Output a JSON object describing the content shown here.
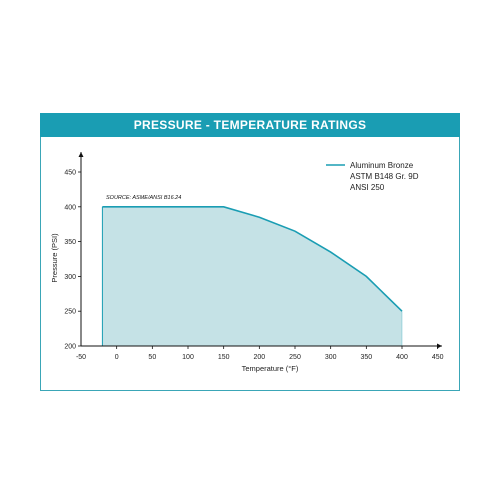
{
  "chart_data": {
    "type": "area",
    "title": "PRESSURE - TEMPERATURE RATINGS",
    "xlabel": "Temperature (°F)",
    "ylabel": "Pressure (PSI)",
    "xlim": [
      -50,
      450
    ],
    "ylim": [
      200,
      450
    ],
    "x_ticks": [
      "-50",
      "0",
      "50",
      "100",
      "150",
      "200",
      "250",
      "300",
      "350",
      "400",
      "450"
    ],
    "y_ticks": [
      "200",
      "250",
      "300",
      "350",
      "400",
      "450"
    ],
    "source_note": "SOURCE: ASME/ANSI B16.24",
    "legend": {
      "placement": "top-right",
      "lines": [
        "Aluminum Bronze",
        "ASTM B148 Gr. 9D",
        "ANSI 250"
      ]
    },
    "series": [
      {
        "x": [
          -20,
          150,
          200,
          250,
          300,
          350,
          400
        ],
        "y": [
          400,
          400,
          385,
          365,
          335,
          300,
          250
        ]
      }
    ],
    "fill_color": "#c5e2e6",
    "line_color": "#1a9db3"
  }
}
